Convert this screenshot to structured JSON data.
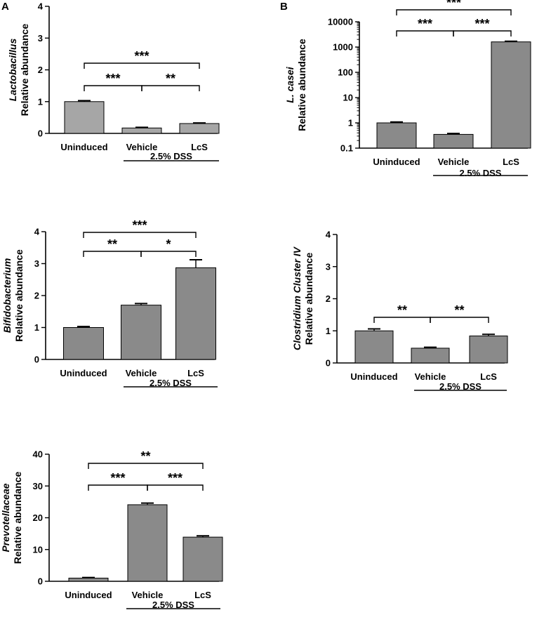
{
  "panel_labels": [
    "A",
    "B"
  ],
  "chart_data": [
    {
      "type": "bar",
      "title": "",
      "organism": "Lactobacillus",
      "ylabel": "Relative abundance",
      "categories": [
        "Uninduced",
        "Vehicle",
        "LcS"
      ],
      "values": [
        1.0,
        0.17,
        0.31
      ],
      "errors": [
        0.03,
        0.02,
        0.02
      ],
      "ylim": [
        0,
        4
      ],
      "yscale": "linear",
      "yticks": [
        0,
        1,
        2,
        3,
        4
      ],
      "ytick_labels": [
        "0",
        "1",
        "2",
        "3",
        "4"
      ],
      "group_label": "2.5% DSS",
      "bar_color": "#a6a6a6",
      "significance": [
        {
          "from": 0,
          "to": 1,
          "label": "***"
        },
        {
          "from": 1,
          "to": 2,
          "label": "**"
        },
        {
          "from": 0,
          "to": 2,
          "label": "***"
        }
      ]
    },
    {
      "type": "bar",
      "title": "",
      "organism": "L. casei",
      "ylabel": "Relative abundance",
      "categories": [
        "Uninduced",
        "Vehicle",
        "LcS"
      ],
      "values": [
        1.0,
        0.35,
        1600
      ],
      "errors": [
        0.08,
        0.03,
        100
      ],
      "ylim": [
        0.1,
        10000
      ],
      "yscale": "log",
      "yticks": [
        0.1,
        1,
        10,
        100,
        1000,
        10000
      ],
      "ytick_labels": [
        "0.1",
        "1",
        "10",
        "100",
        "1000",
        "10000"
      ],
      "group_label": "2.5% DSS",
      "bar_color": "#8a8a8a",
      "significance": [
        {
          "from": 0,
          "to": 1,
          "label": "***"
        },
        {
          "from": 1,
          "to": 2,
          "label": "***"
        },
        {
          "from": 0,
          "to": 2,
          "label": "***"
        }
      ]
    },
    {
      "type": "bar",
      "title": "",
      "organism": "Bifidobacterium",
      "ylabel": "Relative abundance",
      "categories": [
        "Uninduced",
        "Vehicle",
        "LcS"
      ],
      "values": [
        1.0,
        1.7,
        2.87
      ],
      "errors": [
        0.03,
        0.05,
        0.25
      ],
      "ylim": [
        0,
        4
      ],
      "yscale": "linear",
      "yticks": [
        0,
        1,
        2,
        3,
        4
      ],
      "ytick_labels": [
        "0",
        "1",
        "2",
        "3",
        "4"
      ],
      "group_label": "2.5% DSS",
      "bar_color": "#8a8a8a",
      "significance": [
        {
          "from": 0,
          "to": 1,
          "label": "**"
        },
        {
          "from": 1,
          "to": 2,
          "label": "*"
        },
        {
          "from": 0,
          "to": 2,
          "label": "***"
        }
      ]
    },
    {
      "type": "bar",
      "title": "",
      "organism": "Clostridium Cluster IV",
      "ylabel": "Relative abundance",
      "categories": [
        "Uninduced",
        "Vehicle",
        "LcS"
      ],
      "values": [
        1.0,
        0.46,
        0.84
      ],
      "errors": [
        0.06,
        0.03,
        0.05
      ],
      "ylim": [
        0,
        4
      ],
      "yscale": "linear",
      "yticks": [
        0,
        1,
        2,
        3,
        4
      ],
      "ytick_labels": [
        "0",
        "1",
        "2",
        "3",
        "4"
      ],
      "group_label": "2.5% DSS",
      "bar_color": "#8a8a8a",
      "significance": [
        {
          "from": 0,
          "to": 1,
          "label": "**"
        },
        {
          "from": 1,
          "to": 2,
          "label": "**"
        }
      ]
    },
    {
      "type": "bar",
      "title": "",
      "organism": "Prevotellaceae",
      "ylabel": "Relative abundance",
      "categories": [
        "Uninduced",
        "Vehicle",
        "LcS"
      ],
      "values": [
        1.0,
        24.1,
        13.9
      ],
      "errors": [
        0.2,
        0.5,
        0.4
      ],
      "ylim": [
        0,
        40
      ],
      "yscale": "linear",
      "yticks": [
        0,
        10,
        20,
        30,
        40
      ],
      "ytick_labels": [
        "0",
        "10",
        "20",
        "30",
        "40"
      ],
      "group_label": "2.5% DSS",
      "bar_color": "#8a8a8a",
      "significance": [
        {
          "from": 0,
          "to": 1,
          "label": "***"
        },
        {
          "from": 1,
          "to": 2,
          "label": "***"
        },
        {
          "from": 0,
          "to": 2,
          "label": "**"
        }
      ]
    }
  ]
}
